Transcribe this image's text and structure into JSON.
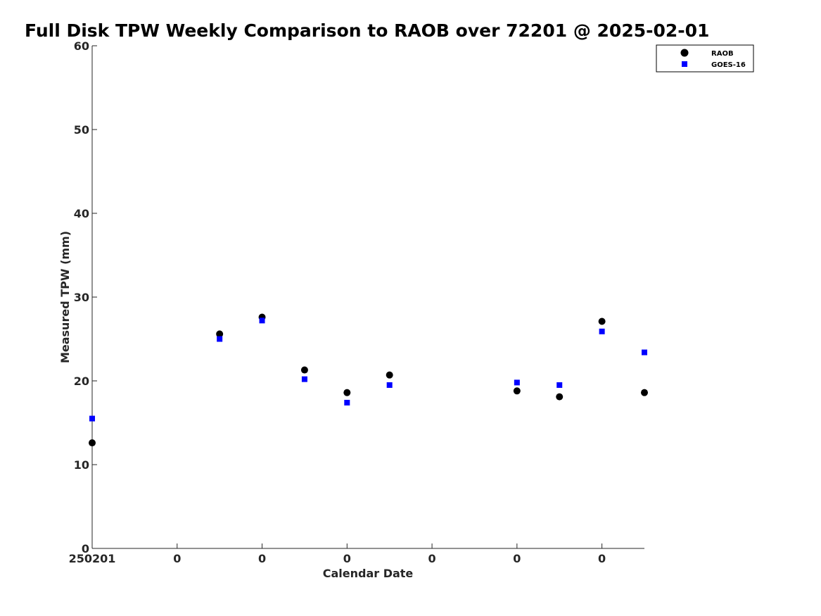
{
  "chart_data": {
    "type": "scatter",
    "title": "Full Disk TPW Weekly Comparison to RAOB over 72201 @ 2025-02-01",
    "xlabel": "Calendar Date",
    "ylabel": "Measured TPW (mm)",
    "ylim": [
      0,
      60
    ],
    "yticks": [
      0,
      10,
      20,
      30,
      40,
      50,
      60
    ],
    "xlim": [
      0,
      13
    ],
    "xticks": [
      0,
      2,
      4,
      6,
      8,
      10,
      12
    ],
    "xtick_labels": [
      "250201",
      "0",
      "0",
      "0",
      "0",
      "0",
      "0"
    ],
    "grid": false,
    "legend_position": "top-right",
    "series": [
      {
        "name": "RAOB",
        "marker": "circle",
        "color": "#000000",
        "points": [
          {
            "x": 0,
            "y": 12.6
          },
          {
            "x": 3,
            "y": 25.6
          },
          {
            "x": 4,
            "y": 27.6
          },
          {
            "x": 5,
            "y": 21.3
          },
          {
            "x": 6,
            "y": 18.6
          },
          {
            "x": 7,
            "y": 20.7
          },
          {
            "x": 10,
            "y": 18.8
          },
          {
            "x": 11,
            "y": 18.1
          },
          {
            "x": 12,
            "y": 27.1
          },
          {
            "x": 13,
            "y": 18.6
          }
        ]
      },
      {
        "name": "GOES-16",
        "marker": "square",
        "color": "#0000ff",
        "points": [
          {
            "x": 0,
            "y": 15.5
          },
          {
            "x": 3,
            "y": 25.0
          },
          {
            "x": 4,
            "y": 27.2
          },
          {
            "x": 5,
            "y": 20.2
          },
          {
            "x": 6,
            "y": 17.4
          },
          {
            "x": 7,
            "y": 19.5
          },
          {
            "x": 10,
            "y": 19.8
          },
          {
            "x": 11,
            "y": 19.5
          },
          {
            "x": 12,
            "y": 25.9
          },
          {
            "x": 13,
            "y": 23.4
          }
        ]
      }
    ]
  }
}
